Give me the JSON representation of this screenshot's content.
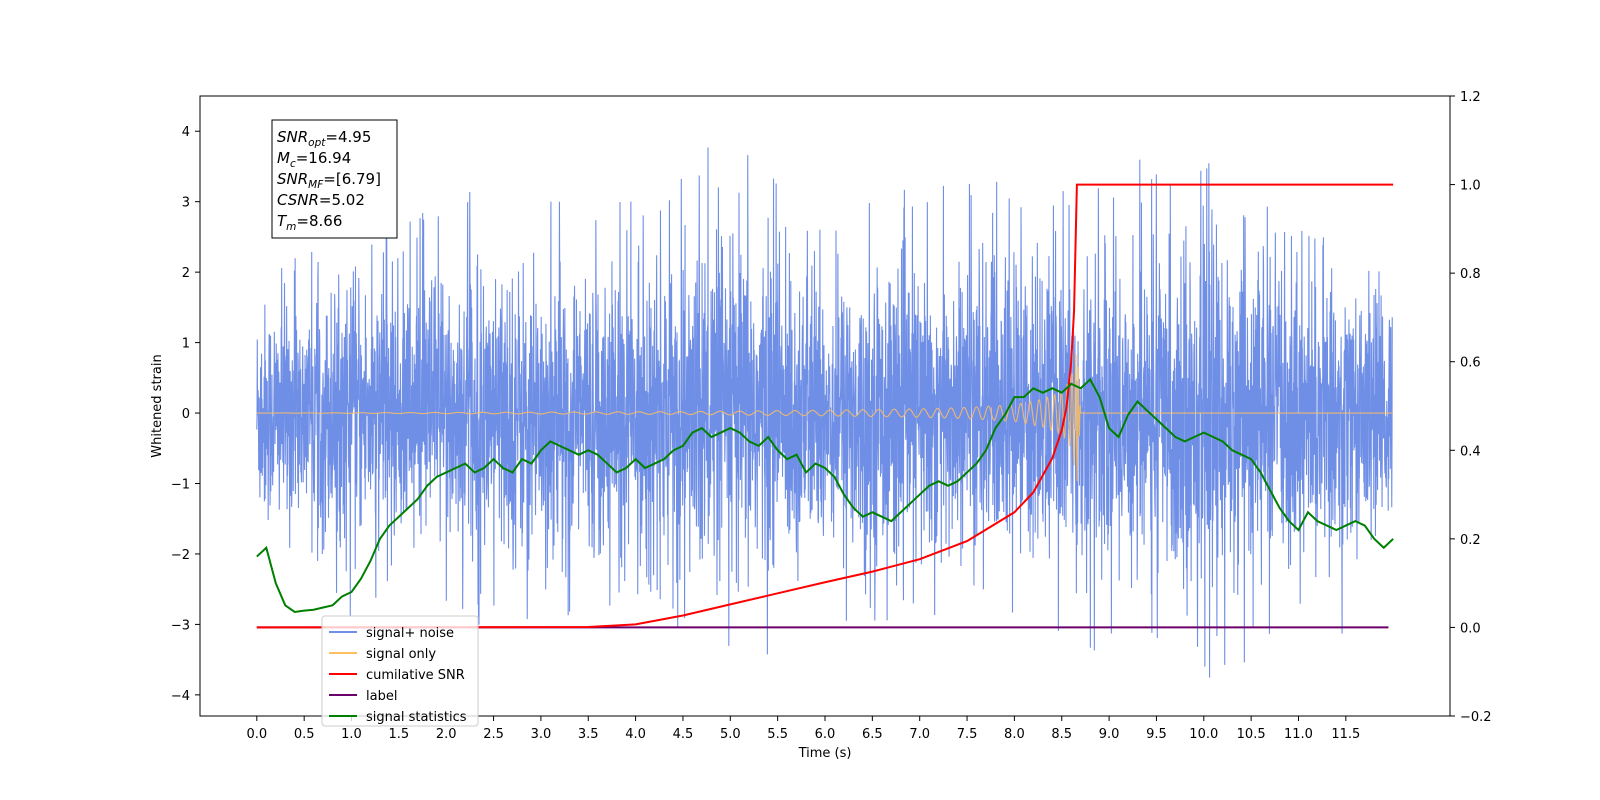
{
  "chart_data": {
    "type": "line",
    "xlabel": "Time (s)",
    "ylabel_left": "Whitened strain",
    "xlim": [
      -0.6,
      12.6
    ],
    "ylim_left": [
      -4.3,
      4.5
    ],
    "ylim_right": [
      -0.2,
      1.2
    ],
    "x_ticks": [
      0.0,
      0.5,
      1.0,
      1.5,
      2.0,
      2.5,
      3.0,
      3.5,
      4.0,
      4.5,
      5.0,
      5.5,
      6.0,
      6.5,
      7.0,
      7.5,
      8.0,
      8.5,
      9.0,
      9.5,
      10.0,
      10.5,
      11.0,
      11.5
    ],
    "x_tick_labels": [
      "0.0",
      "0.5",
      "1.0",
      "1.5",
      "2.0",
      "2.5",
      "3.0",
      "3.5",
      "4.0",
      "4.5",
      "5.0",
      "5.5",
      "6.0",
      "6.5",
      "7.0",
      "7.5",
      "8.0",
      "8.5",
      "9.0",
      "9.5",
      "10.0",
      "10.5",
      "11.0",
      "11.5"
    ],
    "y_ticks_left": [
      -4,
      -3,
      -2,
      -1,
      0,
      1,
      2,
      3,
      4
    ],
    "y_tick_labels_left": [
      "−4",
      "−3",
      "−2",
      "−1",
      "0",
      "1",
      "2",
      "3",
      "4"
    ],
    "y_ticks_right": [
      -0.2,
      0.0,
      0.2,
      0.4,
      0.6,
      0.8,
      1.0,
      1.2
    ],
    "y_tick_labels_right": [
      "−0.2",
      "0.0",
      "0.2",
      "0.4",
      "0.6",
      "0.8",
      "1.0",
      "1.2"
    ],
    "grid": false,
    "legend_position": "lower-left",
    "merger_time": 8.66,
    "series": [
      {
        "name": "signal+ noise",
        "axis": "left",
        "color": "#6f8ee6",
        "description": "dense whitened noise, approx ±2 with spikes to ±4",
        "x": [
          0.0,
          1.0,
          2.0,
          3.0,
          4.0,
          5.0,
          6.0,
          7.0,
          8.0,
          9.0,
          10.0,
          11.0,
          12.0
        ],
        "peaks_max": [
          2.3,
          2.6,
          3.2,
          3.0,
          3.0,
          4.1,
          3.0,
          3.2,
          3.3,
          3.6,
          3.6,
          2.6,
          2.2
        ],
        "peaks_min": [
          -2.5,
          -2.9,
          -3.0,
          -3.4,
          -2.8,
          -3.7,
          -3.0,
          -3.3,
          -3.2,
          -3.4,
          -3.8,
          -3.7,
          -2.8
        ]
      },
      {
        "name": "signal only",
        "axis": "left",
        "color": "#ffbf60",
        "description": "chirp growing toward merger at 8.66 s",
        "x": [
          0.0,
          4.5,
          6.0,
          7.0,
          7.5,
          8.0,
          8.3,
          8.5,
          8.6,
          8.65,
          8.66,
          8.7,
          12.0
        ],
        "amplitude": [
          0.0,
          0.02,
          0.04,
          0.06,
          0.08,
          0.12,
          0.2,
          0.3,
          0.5,
          0.9,
          1.05,
          0.0,
          0.0
        ]
      },
      {
        "name": "cumilative SNR",
        "axis": "right",
        "color": "#ff0000",
        "x": [
          0.0,
          3.5,
          4.0,
          4.5,
          5.0,
          5.5,
          6.0,
          6.5,
          7.0,
          7.5,
          8.0,
          8.2,
          8.4,
          8.5,
          8.55,
          8.6,
          8.63,
          8.66,
          8.67,
          12.0
        ],
        "y": [
          0.0,
          0.001,
          0.007,
          0.027,
          0.052,
          0.077,
          0.102,
          0.126,
          0.154,
          0.195,
          0.26,
          0.305,
          0.382,
          0.445,
          0.497,
          0.6,
          0.715,
          1.0,
          1.0,
          1.0
        ]
      },
      {
        "name": "label",
        "axis": "right",
        "color": "#6a006a",
        "x": [
          0.0,
          11.95
        ],
        "y": [
          0.0,
          0.0
        ]
      },
      {
        "name": "signal statistics",
        "axis": "right",
        "color": "#008000",
        "x": [
          0.0,
          0.1,
          0.2,
          0.3,
          0.4,
          0.5,
          0.6,
          0.7,
          0.8,
          0.9,
          1.0,
          1.1,
          1.2,
          1.3,
          1.4,
          1.5,
          1.6,
          1.7,
          1.8,
          1.9,
          2.0,
          2.1,
          2.2,
          2.3,
          2.4,
          2.5,
          2.6,
          2.7,
          2.8,
          2.9,
          3.0,
          3.1,
          3.2,
          3.3,
          3.4,
          3.5,
          3.6,
          3.7,
          3.8,
          3.9,
          4.0,
          4.1,
          4.2,
          4.3,
          4.4,
          4.5,
          4.6,
          4.7,
          4.8,
          4.9,
          5.0,
          5.1,
          5.2,
          5.3,
          5.4,
          5.5,
          5.6,
          5.7,
          5.8,
          5.9,
          6.0,
          6.1,
          6.2,
          6.3,
          6.4,
          6.5,
          6.6,
          6.7,
          6.8,
          6.9,
          7.0,
          7.1,
          7.2,
          7.3,
          7.4,
          7.5,
          7.6,
          7.7,
          7.8,
          7.9,
          8.0,
          8.1,
          8.2,
          8.3,
          8.4,
          8.5,
          8.6,
          8.7,
          8.8,
          8.9,
          9.0,
          9.1,
          9.2,
          9.3,
          9.4,
          9.5,
          9.6,
          9.7,
          9.8,
          9.9,
          10.0,
          10.1,
          10.2,
          10.3,
          10.4,
          10.5,
          10.6,
          10.7,
          10.8,
          10.9,
          11.0,
          11.1,
          11.2,
          11.3,
          11.4,
          11.5,
          11.6,
          11.7,
          11.8,
          11.9,
          12.0
        ],
        "y": [
          0.16,
          0.18,
          0.1,
          0.05,
          0.035,
          0.038,
          0.04,
          0.045,
          0.05,
          0.07,
          0.08,
          0.11,
          0.15,
          0.2,
          0.23,
          0.25,
          0.27,
          0.29,
          0.32,
          0.34,
          0.35,
          0.36,
          0.37,
          0.35,
          0.36,
          0.38,
          0.36,
          0.35,
          0.38,
          0.37,
          0.4,
          0.42,
          0.41,
          0.4,
          0.39,
          0.4,
          0.39,
          0.37,
          0.35,
          0.36,
          0.38,
          0.36,
          0.37,
          0.38,
          0.4,
          0.41,
          0.44,
          0.45,
          0.43,
          0.44,
          0.45,
          0.44,
          0.42,
          0.41,
          0.43,
          0.4,
          0.38,
          0.39,
          0.35,
          0.37,
          0.36,
          0.34,
          0.3,
          0.27,
          0.25,
          0.26,
          0.25,
          0.24,
          0.26,
          0.28,
          0.3,
          0.32,
          0.33,
          0.32,
          0.33,
          0.35,
          0.37,
          0.4,
          0.45,
          0.48,
          0.52,
          0.52,
          0.54,
          0.53,
          0.54,
          0.53,
          0.55,
          0.54,
          0.56,
          0.52,
          0.45,
          0.43,
          0.48,
          0.51,
          0.49,
          0.47,
          0.45,
          0.43,
          0.42,
          0.43,
          0.44,
          0.43,
          0.42,
          0.4,
          0.39,
          0.38,
          0.35,
          0.31,
          0.27,
          0.24,
          0.22,
          0.26,
          0.24,
          0.23,
          0.22,
          0.23,
          0.24,
          0.23,
          0.2,
          0.18,
          0.2
        ]
      }
    ],
    "legend": [
      {
        "label": "signal+ noise",
        "color": "#6f8ee6"
      },
      {
        "label": "signal only",
        "color": "#ffbf60"
      },
      {
        "label": "cumilative SNR",
        "color": "#ff0000"
      },
      {
        "label": "label",
        "color": "#6a006a"
      },
      {
        "label": "signal statistics",
        "color": "#008000"
      }
    ],
    "info_box": [
      {
        "base": "SNR",
        "sub": "opt",
        "value": "=4.95"
      },
      {
        "base": "M",
        "sub": "c",
        "value": "=16.94"
      },
      {
        "base": "SNR",
        "sub": "MF",
        "value": "=[6.79]"
      },
      {
        "base": "CSNR",
        "sub": "",
        "value": "=5.02"
      },
      {
        "base": "T",
        "sub": "m",
        "value": "=8.66"
      }
    ]
  }
}
